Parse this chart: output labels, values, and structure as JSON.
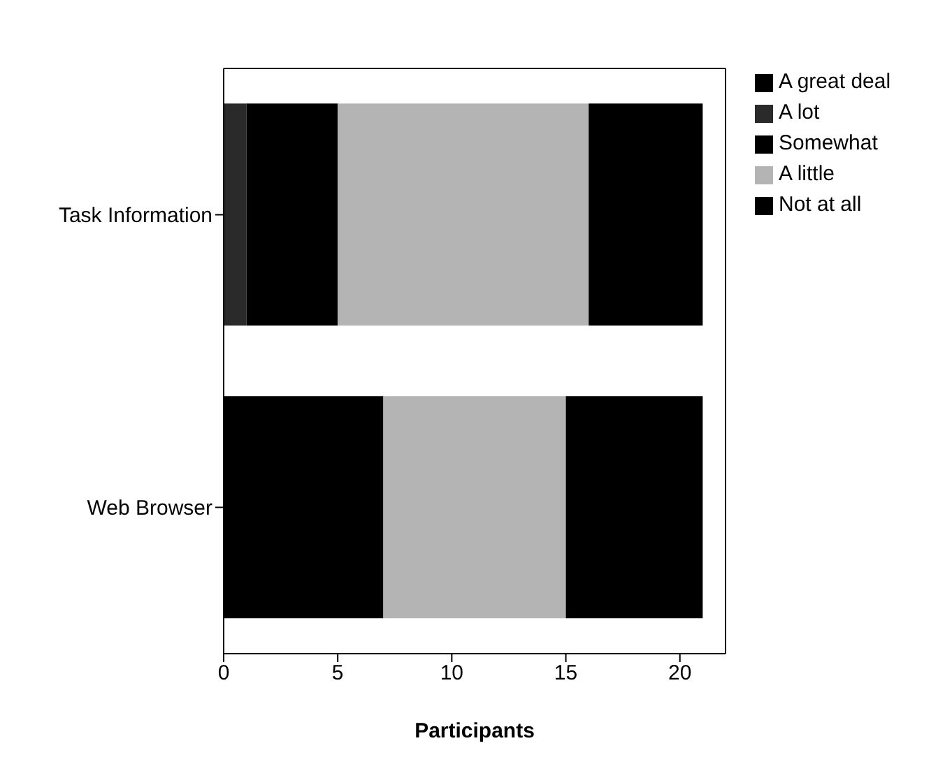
{
  "chart_data": {
    "type": "bar",
    "orientation": "horizontal",
    "stacked": true,
    "xlabel": "Participants",
    "categories": [
      "Task Information",
      "Web Browser"
    ],
    "series": [
      {
        "name": "A great deal",
        "color": "#000000",
        "values": [
          0,
          0
        ]
      },
      {
        "name": "A lot",
        "color": "#2a2a2a",
        "values": [
          1,
          0
        ]
      },
      {
        "name": "Somewhat",
        "color": "#000000",
        "values": [
          4,
          7
        ]
      },
      {
        "name": "A little",
        "color": "#b4b4b4",
        "values": [
          11,
          8
        ]
      },
      {
        "name": "Not at all",
        "color": "#000000",
        "values": [
          5,
          6
        ]
      }
    ],
    "xlim": [
      0,
      22
    ],
    "xticks": [
      0,
      5,
      10,
      15,
      20
    ],
    "legend": "top right"
  }
}
